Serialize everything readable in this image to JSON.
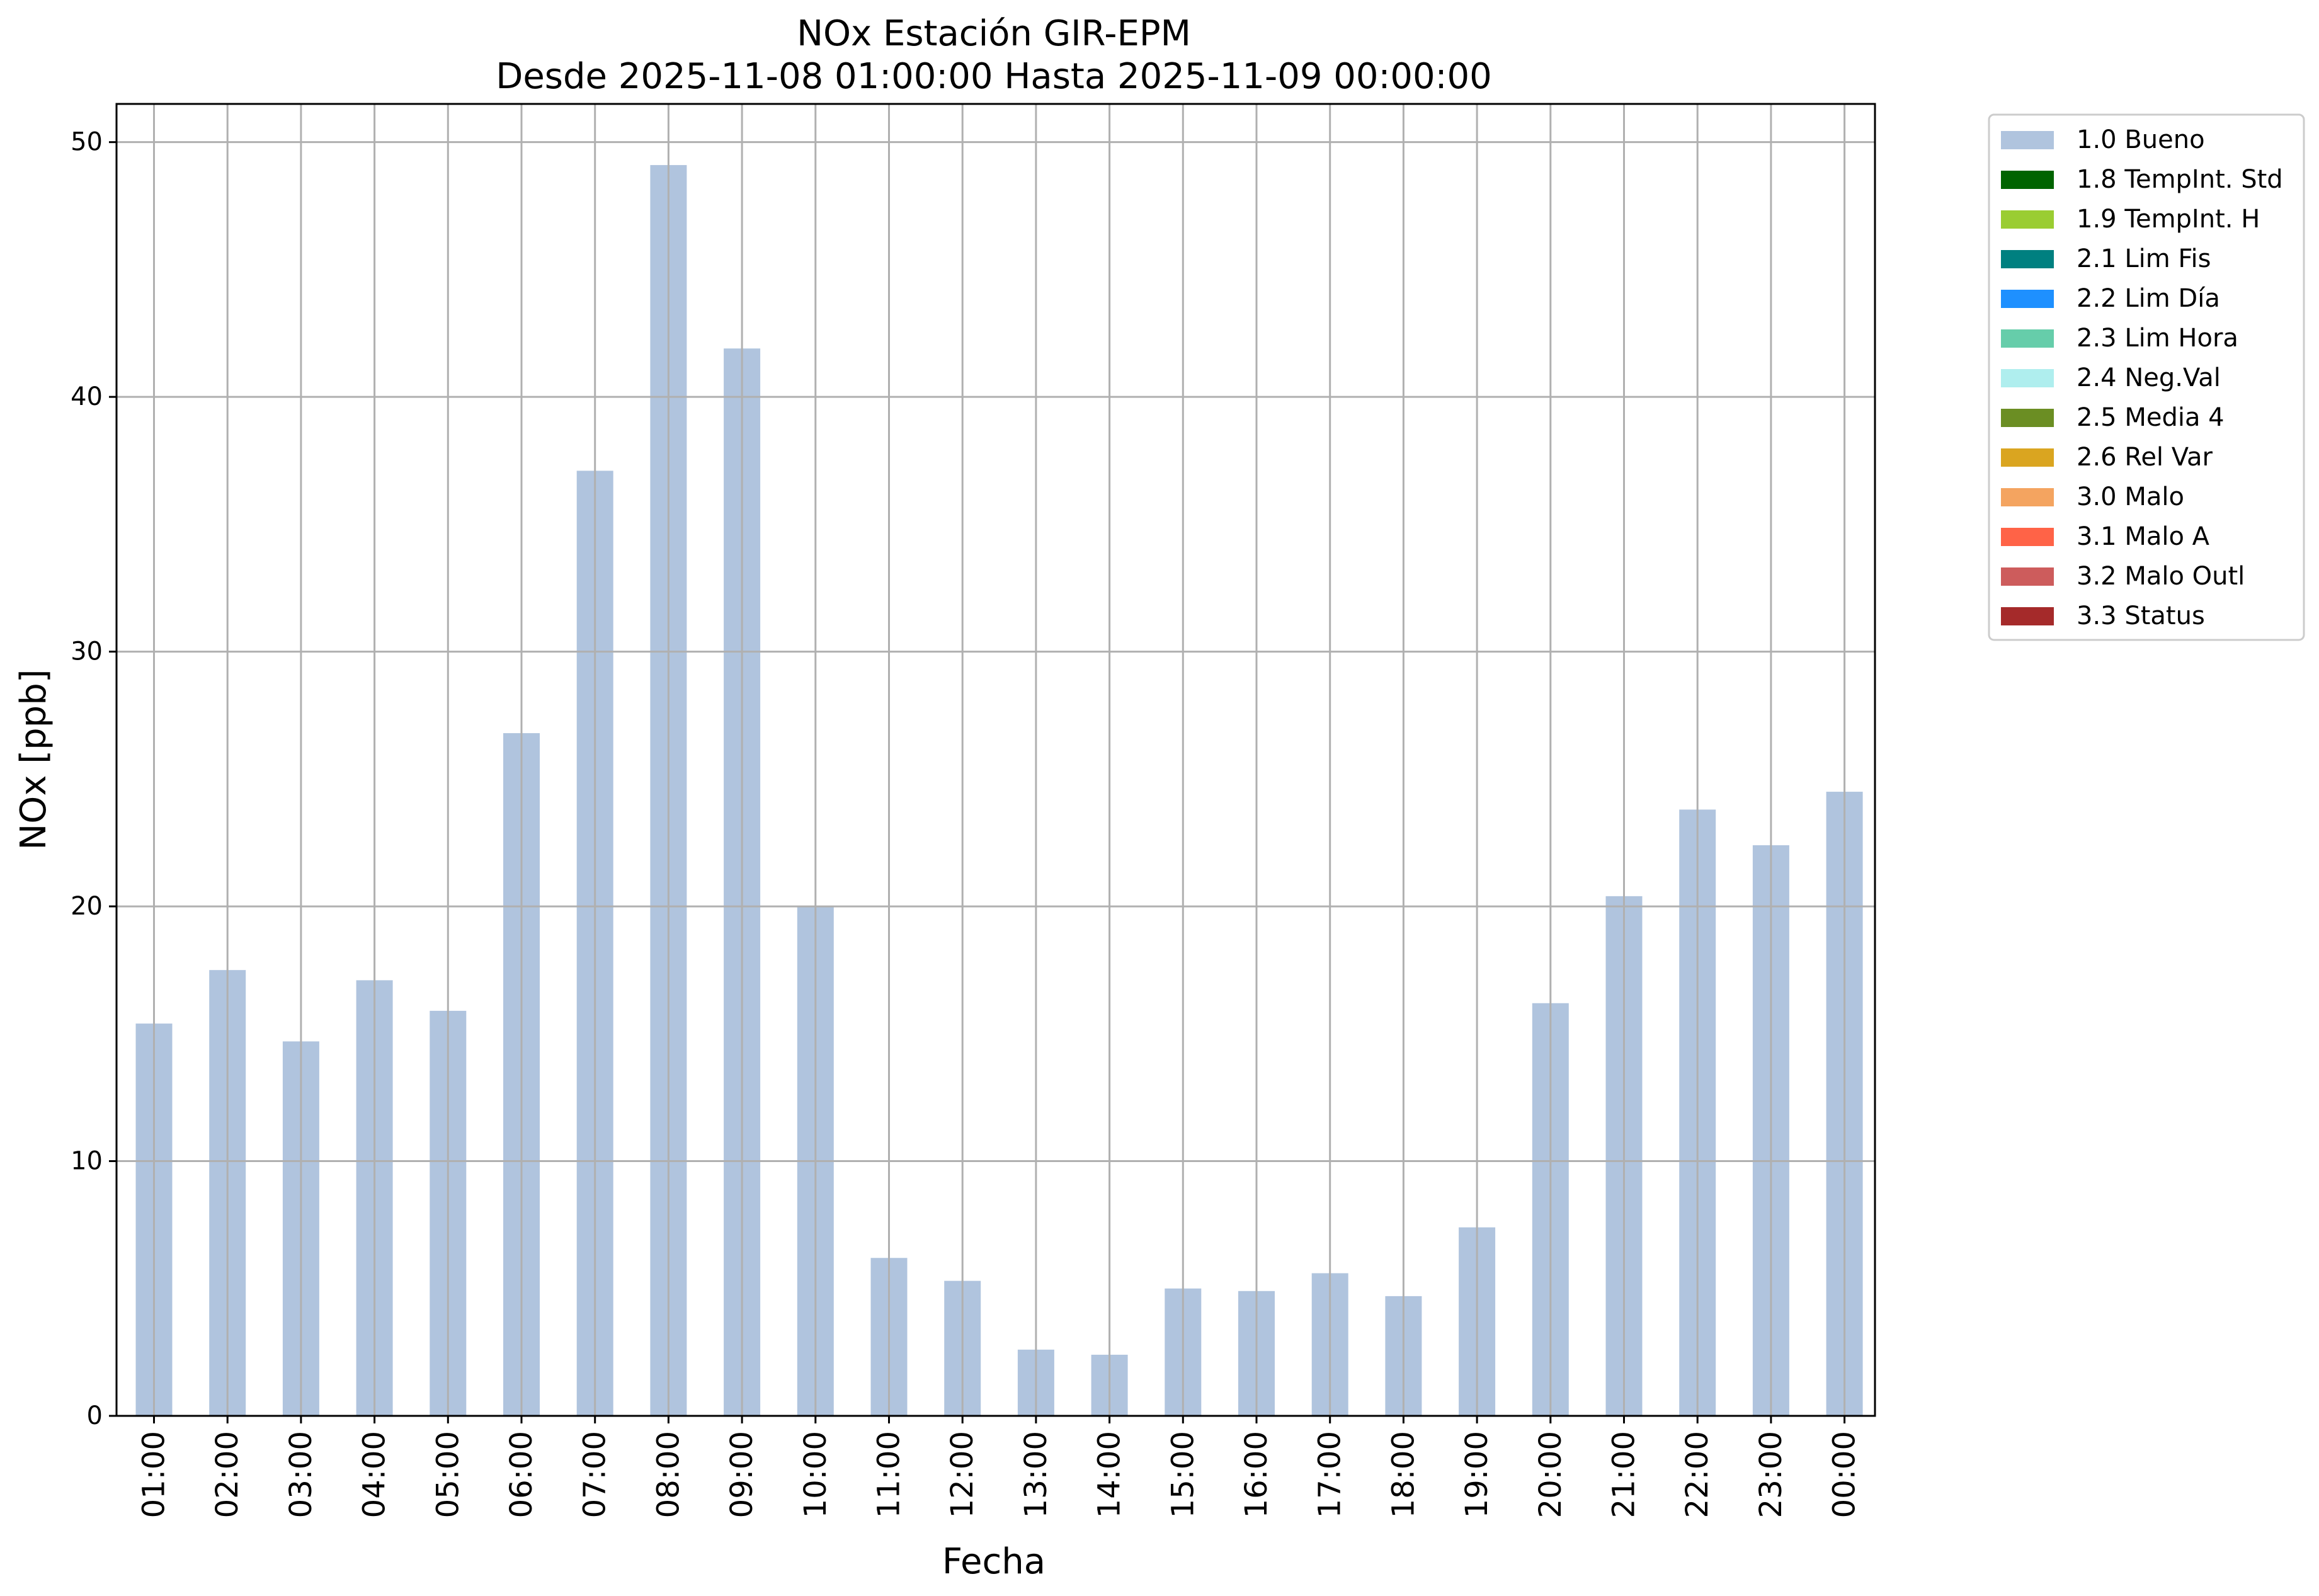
{
  "chart_data": {
    "type": "bar",
    "title": "NOx Estación GIR-EPM",
    "subtitle": "Desde 2025-11-08 01:00:00 Hasta 2025-11-09 00:00:00",
    "xlabel": "Fecha",
    "ylabel": "NOx [ppb]",
    "ylim": [
      0,
      51.5
    ],
    "yticks": [
      0,
      10,
      20,
      30,
      40,
      50
    ],
    "grid": true,
    "legend_position": "outside-top-right",
    "categories": [
      "01:00",
      "02:00",
      "03:00",
      "04:00",
      "05:00",
      "06:00",
      "07:00",
      "08:00",
      "09:00",
      "10:00",
      "11:00",
      "12:00",
      "13:00",
      "14:00",
      "15:00",
      "16:00",
      "17:00",
      "18:00",
      "19:00",
      "20:00",
      "21:00",
      "22:00",
      "23:00",
      "00:00"
    ],
    "series": [
      {
        "name": "1.0 Bueno",
        "color": "#b0c4de",
        "values": [
          15.4,
          17.5,
          14.7,
          17.1,
          15.9,
          26.8,
          37.1,
          49.1,
          41.9,
          20.0,
          6.2,
          5.3,
          2.6,
          2.4,
          5.0,
          4.9,
          5.6,
          4.7,
          7.4,
          16.2,
          20.4,
          23.8,
          22.4,
          24.5
        ]
      }
    ],
    "legend": [
      {
        "label": "1.0 Bueno",
        "color": "#b0c4de"
      },
      {
        "label": "1.8 TempInt. Std",
        "color": "#006400"
      },
      {
        "label": "1.9 TempInt. H",
        "color": "#9acd32"
      },
      {
        "label": "2.1 Lim Fis",
        "color": "#008080"
      },
      {
        "label": "2.2 Lim Día",
        "color": "#1e90ff"
      },
      {
        "label": "2.3 Lim Hora",
        "color": "#66cdaa"
      },
      {
        "label": "2.4 Neg.Val",
        "color": "#afeeee"
      },
      {
        "label": "2.5 Media 4",
        "color": "#6b8e23"
      },
      {
        "label": "2.6 Rel Var",
        "color": "#daa520"
      },
      {
        "label": "3.0 Malo",
        "color": "#f4a460"
      },
      {
        "label": "3.1 Malo A",
        "color": "#ff6347"
      },
      {
        "label": "3.2 Malo Outl",
        "color": "#cd5c5c"
      },
      {
        "label": "3.3 Status",
        "color": "#a52a2a"
      }
    ]
  }
}
